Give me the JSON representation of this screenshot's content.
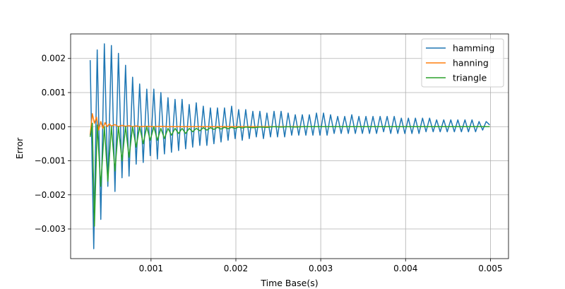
{
  "chart_data": {
    "type": "line",
    "title": "",
    "xlabel": "Time Base(s)",
    "ylabel": "Error",
    "xlim": [
      5.25e-05,
      0.005213
    ],
    "ylim": [
      -0.00387,
      0.00272
    ],
    "grid": true,
    "legend_position": "top-right",
    "x_ticks": [
      {
        "value": 0.001,
        "label": "0.001"
      },
      {
        "value": 0.002,
        "label": "0.002"
      },
      {
        "value": 0.003,
        "label": "0.003"
      },
      {
        "value": 0.004,
        "label": "0.004"
      },
      {
        "value": 0.005,
        "label": "0.005"
      }
    ],
    "y_ticks": [
      {
        "value": 0.002,
        "label": "0.002"
      },
      {
        "value": 0.001,
        "label": "0.001"
      },
      {
        "value": 0.0,
        "label": "0.000"
      },
      {
        "value": -0.001,
        "label": "−0.001"
      },
      {
        "value": -0.002,
        "label": "−0.002"
      },
      {
        "value": -0.003,
        "label": "−0.003"
      }
    ],
    "series": [
      {
        "name": "hamming",
        "color": "#1f77b4",
        "x": [
          0.000283,
          0.000325,
          0.000366,
          0.000408,
          0.00045,
          0.000491,
          0.000533,
          0.000575,
          0.000616,
          0.000658,
          0.0007,
          0.000741,
          0.000783,
          0.000825,
          0.000866,
          0.000908,
          0.00095,
          0.000991,
          0.001033,
          0.001075,
          0.001116,
          0.001158,
          0.0012,
          0.001241,
          0.001283,
          0.001325,
          0.001366,
          0.001408,
          0.00145,
          0.001491,
          0.001533,
          0.001575,
          0.001616,
          0.001658,
          0.0017,
          0.001741,
          0.001783,
          0.001825,
          0.001866,
          0.001908,
          0.00195,
          0.001991,
          0.002033,
          0.002075,
          0.002116,
          0.002158,
          0.0022,
          0.002241,
          0.002283,
          0.002325,
          0.002366,
          0.002408,
          0.00245,
          0.002491,
          0.002533,
          0.002575,
          0.002616,
          0.002658,
          0.0027,
          0.002741,
          0.002783,
          0.002825,
          0.002866,
          0.002908,
          0.00295,
          0.002991,
          0.003033,
          0.003075,
          0.003116,
          0.003158,
          0.0032,
          0.003241,
          0.003283,
          0.003325,
          0.003366,
          0.003408,
          0.00345,
          0.003491,
          0.003533,
          0.003575,
          0.003616,
          0.003658,
          0.0037,
          0.003741,
          0.003783,
          0.003825,
          0.003866,
          0.003908,
          0.00395,
          0.003991,
          0.004033,
          0.004075,
          0.004116,
          0.004158,
          0.0042,
          0.004241,
          0.004283,
          0.004325,
          0.004366,
          0.004408,
          0.00445,
          0.004491,
          0.004533,
          0.004575,
          0.004616,
          0.004658,
          0.0047,
          0.004741,
          0.004783,
          0.004825,
          0.004866,
          0.004908,
          0.00495,
          0.004991
        ],
        "y": [
          0.00195,
          -0.00358,
          0.00225,
          -0.00272,
          0.00243,
          -0.00175,
          0.00238,
          -0.0019,
          0.00215,
          -0.0015,
          0.0018,
          -0.00145,
          0.00145,
          -0.0011,
          0.00125,
          -0.00105,
          0.0011,
          -0.00085,
          0.0011,
          -0.00095,
          0.001,
          -0.0008,
          0.00085,
          -0.00075,
          0.0008,
          -0.0007,
          0.0008,
          -0.00065,
          0.00065,
          -0.0006,
          0.0007,
          -0.00055,
          0.0006,
          -0.00055,
          0.00055,
          -0.0005,
          0.00055,
          -0.00045,
          0.00055,
          -0.0004,
          0.0006,
          -0.00035,
          0.0005,
          -0.0004,
          0.0005,
          -0.00035,
          0.00045,
          -0.0003,
          0.00045,
          -0.00035,
          0.0004,
          -0.0003,
          0.00045,
          -0.0003,
          0.00045,
          -0.0003,
          0.0004,
          -0.00025,
          0.00035,
          -0.00025,
          0.00035,
          -0.00025,
          0.00035,
          -0.00025,
          0.0004,
          -0.00025,
          0.0004,
          -0.00025,
          0.00035,
          -0.0002,
          0.0003,
          -0.0002,
          0.0003,
          -0.0002,
          0.00035,
          -0.0002,
          0.0003,
          -0.0002,
          0.0003,
          -0.0002,
          0.0003,
          -0.0002,
          0.0003,
          -0.00015,
          0.0003,
          -0.0002,
          0.0003,
          -0.0002,
          0.00025,
          -0.0002,
          0.00025,
          -0.0002,
          0.00025,
          -0.0002,
          0.00025,
          -0.00015,
          0.00025,
          -0.00015,
          0.0002,
          -0.00015,
          0.0002,
          -0.00015,
          0.0002,
          -0.00015,
          0.0002,
          -0.00015,
          0.0002,
          -0.00015,
          0.0002,
          -0.00015,
          0.00015,
          -0.0001,
          0.00015,
          5e-05
        ]
      },
      {
        "name": "hanning",
        "color": "#ff7f0e",
        "x": [
          0.000283,
          0.000308,
          0.000333,
          0.000358,
          0.000383,
          0.000408,
          0.000433,
          0.000458,
          0.000483,
          0.000508,
          0.000533,
          0.000575,
          0.000616,
          0.000658,
          0.0007,
          0.000741,
          0.000783,
          0.000825,
          0.000866,
          0.00095,
          0.001033,
          0.001116,
          0.0012,
          0.00145,
          0.0017,
          0.002,
          0.0025,
          0.003,
          0.0035,
          0.004,
          0.0045,
          0.004991
        ],
        "y": [
          -0.00025,
          0.00038,
          0.0001,
          0.00028,
          -0.0001,
          0.00015,
          -5e-05,
          0.00012,
          0.0,
          8e-05,
          2e-05,
          6e-05,
          0.0,
          4e-05,
          1e-05,
          3e-05,
          0.0,
          2e-05,
          0.0,
          1e-05,
          0.0,
          1e-05,
          0.0,
          0.0,
          0.0,
          0.0,
          0.0,
          0.0,
          0.0,
          0.0,
          0.0,
          0.0
        ]
      },
      {
        "name": "triangle",
        "color": "#2ca02c",
        "x": [
          0.000283,
          0.000308,
          0.000333,
          0.000366,
          0.000408,
          0.00045,
          0.000491,
          0.000533,
          0.000575,
          0.000616,
          0.000658,
          0.0007,
          0.000741,
          0.000783,
          0.000825,
          0.000866,
          0.000908,
          0.00095,
          0.000991,
          0.001033,
          0.001075,
          0.001116,
          0.001158,
          0.0012,
          0.001241,
          0.001283,
          0.001325,
          0.001366,
          0.001408,
          0.00145,
          0.001491,
          0.001533,
          0.001575,
          0.001616,
          0.001658,
          0.0017,
          0.001741,
          0.001783,
          0.001825,
          0.001866,
          0.001908,
          0.00195,
          0.001991,
          0.002033,
          0.002075,
          0.002116,
          0.0022,
          0.002283,
          0.002366,
          0.00245,
          0.002533,
          0.002616,
          0.0027,
          0.0028,
          0.0029,
          0.003,
          0.0032,
          0.0034,
          0.0036,
          0.0038,
          0.004,
          0.00425,
          0.0045,
          0.00475,
          0.004991
        ],
        "y": [
          -0.0003,
          0.0001,
          -0.00292,
          5e-05,
          -0.00175,
          0.0,
          -0.0016,
          0.0,
          -0.0013,
          0.0,
          -0.001,
          0.0,
          -0.0009,
          0.0,
          -0.0006,
          0.0,
          -0.0005,
          0.0,
          -0.0004,
          0.0,
          -0.0004,
          -5e-05,
          -0.00035,
          -5e-05,
          -0.00025,
          -5e-05,
          -0.0002,
          -5e-05,
          -0.0002,
          -5e-05,
          -0.00015,
          -5e-05,
          -0.00012,
          -3e-05,
          -0.0001,
          -3e-05,
          -8e-05,
          -2e-05,
          -7e-05,
          -2e-05,
          -6e-05,
          -2e-05,
          -5e-05,
          -1e-05,
          -4e-05,
          -1e-05,
          -3e-05,
          -1e-05,
          -2e-05,
          0.0,
          -1e-05,
          0.0,
          -1e-05,
          0.0,
          0.0,
          0.0,
          0.0,
          0.0,
          0.0,
          0.0,
          0.0,
          0.0,
          0.0,
          0.0,
          0.0
        ]
      }
    ]
  }
}
